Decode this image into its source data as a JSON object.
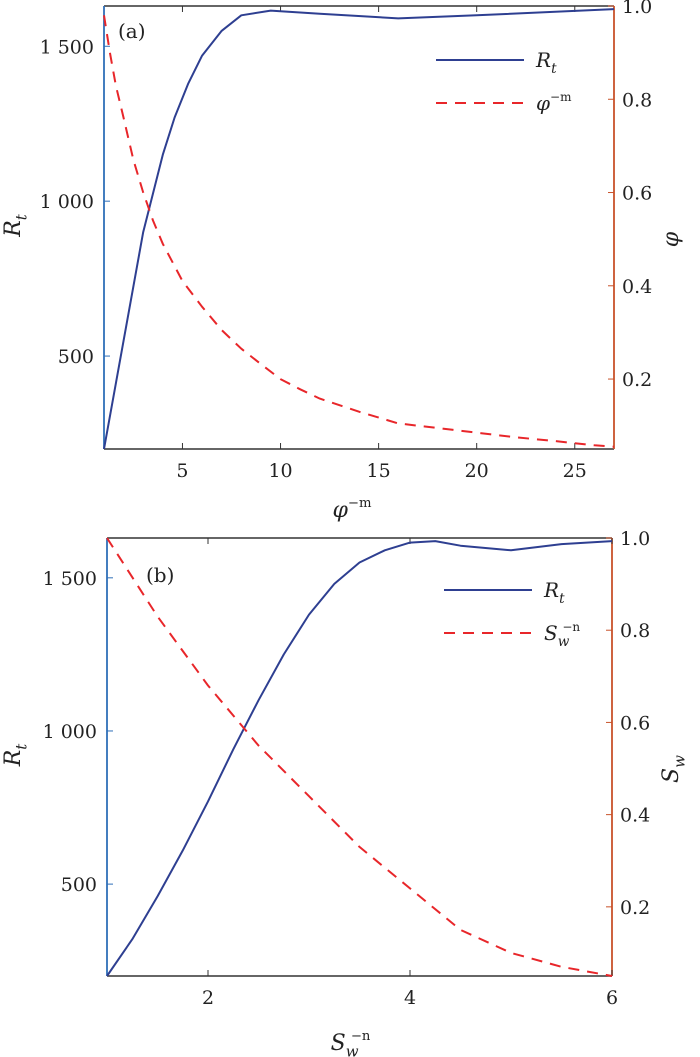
{
  "chart_data": [
    {
      "type": "line",
      "panel_label": "(a)",
      "xlabel": {
        "base": "φ",
        "sup": "−m"
      },
      "ylabel_left": {
        "base": "R",
        "sub": "t"
      },
      "ylabel_right": {
        "base": "φ"
      },
      "xlim": [
        1,
        27
      ],
      "ylim_left": [
        200,
        1630
      ],
      "ylim_right": [
        0.05,
        1.0
      ],
      "xticks": [
        5,
        10,
        15,
        20,
        25
      ],
      "xtick_labels": [
        "5",
        "10",
        "15",
        "20",
        "25"
      ],
      "yticks_left": [
        500,
        1000,
        1500
      ],
      "ytick_labels_left": [
        "500",
        "1 000",
        "1 500"
      ],
      "yticks_right": [
        0.2,
        0.4,
        0.6,
        0.8,
        1.0
      ],
      "ytick_labels_right": [
        "0.2",
        "0.4",
        "0.6",
        "0.8",
        "1.0"
      ],
      "legend_position": "top-right",
      "series": [
        {
          "name": {
            "base": "R",
            "sub": "t"
          },
          "axis": "left",
          "style": "solid",
          "color": "#2e3f91",
          "x": [
            1,
            2,
            3,
            4,
            4.6,
            5.3,
            6,
            7,
            8,
            9.5,
            12,
            16,
            20,
            27
          ],
          "y": [
            200,
            550,
            900,
            1150,
            1270,
            1380,
            1470,
            1550,
            1600,
            1615,
            1605,
            1590,
            1600,
            1620
          ]
        },
        {
          "name": {
            "base": "φ",
            "sup": "−m"
          },
          "axis": "right",
          "style": "dashed",
          "color": "#e8262a",
          "x": [
            1,
            1.3,
            1.6,
            2,
            2.5,
            3,
            3.5,
            4,
            5,
            6,
            7,
            8,
            9,
            10,
            11,
            12,
            14,
            16,
            18,
            20,
            22,
            24,
            26,
            27
          ],
          "y": [
            0.98,
            0.9,
            0.83,
            0.76,
            0.67,
            0.6,
            0.54,
            0.49,
            0.41,
            0.355,
            0.305,
            0.265,
            0.232,
            0.2,
            0.178,
            0.158,
            0.13,
            0.105,
            0.095,
            0.085,
            0.075,
            0.067,
            0.058,
            0.055
          ]
        }
      ]
    },
    {
      "type": "line",
      "panel_label": "(b)",
      "xlabel": {
        "base": "S",
        "sub": "w",
        "sup": "−n"
      },
      "ylabel_left": {
        "base": "R",
        "sub": "t"
      },
      "ylabel_right": {
        "base": "S",
        "sub": "w"
      },
      "xlim": [
        1,
        6
      ],
      "ylim_left": [
        200,
        1630
      ],
      "ylim_right": [
        0.05,
        1.0
      ],
      "xticks": [
        2,
        4,
        6
      ],
      "xtick_labels": [
        "2",
        "4",
        "6"
      ],
      "yticks_left": [
        500,
        1000,
        1500
      ],
      "ytick_labels_left": [
        "500",
        "1 000",
        "1 500"
      ],
      "yticks_right": [
        0.2,
        0.4,
        0.6,
        0.8,
        1.0
      ],
      "ytick_labels_right": [
        "0.2",
        "0.4",
        "0.6",
        "0.8",
        "1.0"
      ],
      "legend_position": "top-right",
      "series": [
        {
          "name": {
            "base": "R",
            "sub": "t"
          },
          "axis": "left",
          "style": "solid",
          "color": "#2e3f91",
          "x": [
            1,
            1.25,
            1.5,
            1.75,
            2,
            2.25,
            2.5,
            2.75,
            3,
            3.25,
            3.5,
            3.75,
            4,
            4.25,
            4.5,
            5,
            5.5,
            6
          ],
          "y": [
            200,
            320,
            460,
            610,
            770,
            940,
            1100,
            1250,
            1380,
            1480,
            1550,
            1590,
            1615,
            1620,
            1605,
            1590,
            1610,
            1620
          ]
        },
        {
          "name": {
            "base": "S",
            "sub": "w",
            "sup": "−n"
          },
          "axis": "right",
          "style": "dashed",
          "color": "#e8262a",
          "x": [
            1,
            1.5,
            2,
            2.5,
            3,
            3.5,
            4,
            4.5,
            5,
            5.5,
            6
          ],
          "y": [
            1.0,
            0.83,
            0.68,
            0.55,
            0.44,
            0.33,
            0.24,
            0.15,
            0.1,
            0.07,
            0.05
          ]
        }
      ]
    }
  ]
}
